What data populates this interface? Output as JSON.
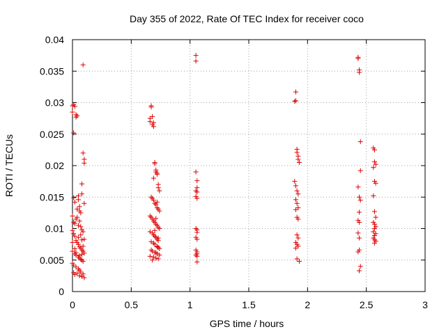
{
  "chart_data": {
    "type": "scatter",
    "title": "Day 355 of 2022, Rate Of TEC Index for receiver coco",
    "xlabel": "GPS time / hours",
    "ylabel": "ROTI / TECUs",
    "xlim": [
      0,
      3
    ],
    "ylim": [
      0,
      0.04
    ],
    "xticks": [
      "0",
      "0.5",
      "1",
      "1.5",
      "2",
      "2.5",
      "3"
    ],
    "yticks": [
      "0",
      "0.005",
      "0.01",
      "0.015",
      "0.02",
      "0.025",
      "0.03",
      "0.035",
      "0.04"
    ],
    "grid": true,
    "marker": "plus",
    "color": "#dd0000",
    "series": [
      {
        "name": "ROTI",
        "x": [
          0.0,
          0.0,
          0.01,
          0.02,
          0.03,
          0.03,
          0.04,
          0.05,
          0.05,
          0.06,
          0.06,
          0.07,
          0.08,
          0.09,
          0.1,
          0.1,
          0.01,
          0.02,
          0.04,
          0.06,
          0.07,
          0.09,
          0.08,
          0.1,
          0.0,
          0.01,
          0.02,
          0.03,
          0.04,
          0.05,
          0.06,
          0.07,
          0.08,
          0.09,
          0.1,
          0.0,
          0.02,
          0.03,
          0.05,
          0.06,
          0.08,
          0.09,
          0.0,
          0.01,
          0.03,
          0.05,
          0.06,
          0.07,
          0.09,
          0.01,
          0.02,
          0.04,
          0.06,
          0.08,
          0.1,
          0.03,
          0.05,
          0.08,
          0.0,
          0.01,
          0.05,
          0.07,
          0.08,
          0.09,
          0.03,
          0.06,
          0.02,
          0.0,
          0.09,
          0.08,
          0.01,
          0.02,
          0.1,
          0.04,
          0.07,
          0.66,
          0.66,
          0.67,
          0.67,
          0.68,
          0.68,
          0.69,
          0.69,
          0.7,
          0.7,
          0.71,
          0.71,
          0.72,
          0.72,
          0.73,
          0.73,
          0.74,
          0.67,
          0.68,
          0.69,
          0.7,
          0.71,
          0.72,
          0.73,
          0.74,
          0.66,
          0.67,
          0.68,
          0.69,
          0.7,
          0.71,
          0.72,
          0.73,
          0.74,
          0.66,
          0.68,
          0.69,
          0.7,
          0.71,
          0.72,
          0.73,
          0.67,
          0.69,
          0.7,
          0.72,
          0.73,
          0.74,
          0.67,
          0.68,
          0.7,
          0.72,
          0.74,
          0.66,
          0.69,
          0.71,
          0.73,
          0.68,
          0.71,
          0.72,
          0.73,
          0.7,
          0.71,
          0.72,
          0.69,
          1.05,
          1.05,
          1.05,
          1.06,
          1.06,
          1.05,
          1.06,
          1.05,
          1.06,
          1.05,
          1.06,
          1.06,
          1.05,
          1.06,
          1.05,
          1.06,
          1.06,
          1.05,
          1.06,
          1.06,
          1.89,
          1.9,
          1.9,
          1.91,
          1.91,
          1.92,
          1.92,
          1.93,
          1.89,
          1.9,
          1.91,
          1.92,
          1.9,
          1.91,
          1.92,
          1.9,
          1.91,
          1.92,
          1.91,
          1.92,
          1.9,
          1.91,
          1.92,
          1.9,
          1.91,
          1.93,
          2.43,
          2.43,
          2.44,
          2.44,
          2.45,
          2.45,
          2.43,
          2.44,
          2.45,
          2.44,
          2.43,
          2.44,
          2.43,
          2.44,
          2.44,
          2.43,
          2.45,
          2.44,
          2.56,
          2.57,
          2.57,
          2.58,
          2.56,
          2.57,
          2.58,
          2.56,
          2.57,
          2.58,
          2.56,
          2.57,
          2.58,
          2.57,
          2.56,
          2.58,
          2.57,
          2.56,
          2.57,
          2.58,
          2.57
        ],
        "y": [
          0.0285,
          0.0295,
          0.0297,
          0.0294,
          0.0281,
          0.0277,
          0.0279,
          0.0152,
          0.0146,
          0.0135,
          0.0128,
          0.0125,
          0.0171,
          0.022,
          0.021,
          0.0204,
          0.0252,
          0.0142,
          0.0131,
          0.0112,
          0.0103,
          0.0095,
          0.0155,
          0.014,
          0.0097,
          0.0092,
          0.0088,
          0.0081,
          0.0078,
          0.0075,
          0.0071,
          0.0069,
          0.0066,
          0.0064,
          0.0061,
          0.0064,
          0.006,
          0.0058,
          0.0055,
          0.0053,
          0.005,
          0.0048,
          0.0045,
          0.0042,
          0.0039,
          0.0036,
          0.0034,
          0.0031,
          0.0028,
          0.003,
          0.0027,
          0.0029,
          0.0025,
          0.0024,
          0.0022,
          0.0115,
          0.0105,
          0.0098,
          0.012,
          0.011,
          0.0086,
          0.009,
          0.0082,
          0.0072,
          0.0062,
          0.0057,
          0.0068,
          0.0078,
          0.036,
          0.0059,
          0.0149,
          0.0108,
          0.0083,
          0.0118,
          0.0051,
          0.027,
          0.0275,
          0.0293,
          0.0295,
          0.0278,
          0.0265,
          0.0262,
          0.0268,
          0.0205,
          0.0203,
          0.0193,
          0.019,
          0.0188,
          0.0186,
          0.017,
          0.0165,
          0.016,
          0.015,
          0.0148,
          0.0145,
          0.014,
          0.0138,
          0.0133,
          0.0131,
          0.0128,
          0.012,
          0.0118,
          0.0115,
          0.0112,
          0.011,
          0.0107,
          0.0105,
          0.0102,
          0.01,
          0.0095,
          0.0093,
          0.009,
          0.0088,
          0.0086,
          0.0083,
          0.0081,
          0.0079,
          0.0077,
          0.0075,
          0.0072,
          0.007,
          0.0068,
          0.0066,
          0.0064,
          0.0062,
          0.006,
          0.0058,
          0.0056,
          0.0055,
          0.0053,
          0.0052,
          0.005,
          0.0062,
          0.0071,
          0.0085,
          0.0097,
          0.0116,
          0.0142,
          0.018,
          0.0375,
          0.0366,
          0.019,
          0.0176,
          0.0165,
          0.016,
          0.0158,
          0.0151,
          0.0148,
          0.01,
          0.0098,
          0.0094,
          0.0086,
          0.0083,
          0.0066,
          0.0063,
          0.006,
          0.0058,
          0.0056,
          0.0047,
          0.0302,
          0.0303,
          0.0317,
          0.0226,
          0.0221,
          0.0215,
          0.021,
          0.0205,
          0.0175,
          0.0168,
          0.016,
          0.0155,
          0.0146,
          0.014,
          0.0133,
          0.013,
          0.0118,
          0.0115,
          0.009,
          0.0085,
          0.0078,
          0.0075,
          0.0072,
          0.0069,
          0.0052,
          0.0048,
          0.0372,
          0.037,
          0.0352,
          0.0348,
          0.0238,
          0.0192,
          0.0166,
          0.015,
          0.0145,
          0.0126,
          0.0113,
          0.011,
          0.0093,
          0.0085,
          0.0066,
          0.0063,
          0.004,
          0.0033,
          0.0228,
          0.0225,
          0.0206,
          0.0202,
          0.0197,
          0.0175,
          0.0172,
          0.0152,
          0.0127,
          0.0118,
          0.011,
          0.0107,
          0.0103,
          0.01,
          0.0095,
          0.0092,
          0.0089,
          0.0085,
          0.0082,
          0.008,
          0.0077
        ]
      }
    ]
  }
}
